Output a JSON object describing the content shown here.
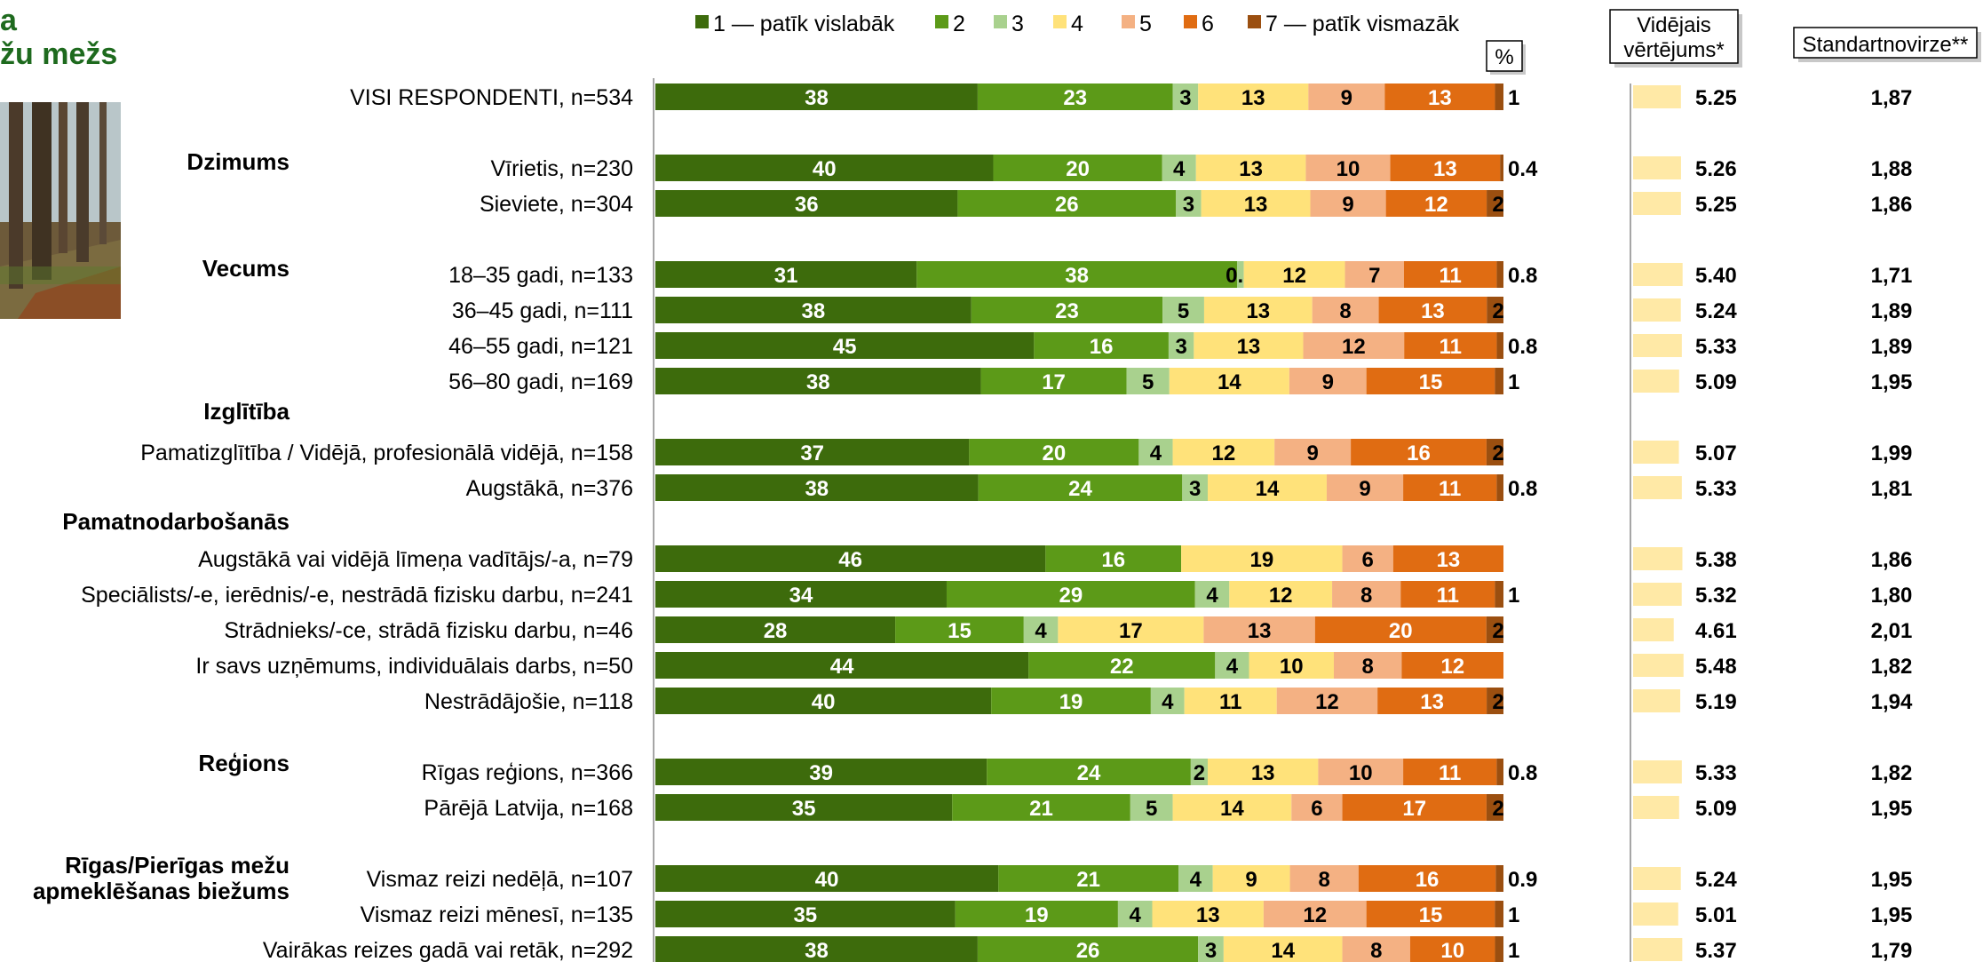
{
  "title_fragments": [
    "a",
    "žu mežs"
  ],
  "photo_icon": "forest-photo-icon",
  "percent_label": "%",
  "mean_header": [
    "Vidējais",
    "vērtējums*"
  ],
  "sd_header": "Standartnovirze**",
  "colors": [
    "#3d6b0c",
    "#5c9a18",
    "#a9d18e",
    "#ffe27a",
    "#f4b183",
    "#e06c12",
    "#9b4f10"
  ],
  "chart_data": {
    "type": "bar",
    "orientation": "horizontal",
    "stacked": true,
    "legend_position": "top",
    "xlim": [
      0,
      100
    ],
    "series": [
      {
        "name": "1 — patīk vislabāk"
      },
      {
        "name": "2"
      },
      {
        "name": "3"
      },
      {
        "name": "4"
      },
      {
        "name": "5"
      },
      {
        "name": "6"
      },
      {
        "name": "7 — patīk vismazāk"
      }
    ],
    "rows": [
      {
        "group": "",
        "label": "VISI RESPONDENTI, n=534",
        "values": [
          38,
          23,
          3,
          13,
          9,
          13,
          1
        ],
        "labels": [
          "38",
          "23",
          "3",
          "13",
          "9",
          "13",
          "1"
        ],
        "mean": "5.25",
        "sd": "1,87"
      },
      {
        "group": "Dzimums",
        "label": "Vīrietis, n=230",
        "values": [
          40,
          20,
          4,
          13,
          10,
          13,
          0.4
        ],
        "labels": [
          "40",
          "20",
          "4",
          "13",
          "10",
          "13",
          "0.4"
        ],
        "mean": "5.26",
        "sd": "1,88"
      },
      {
        "group": "",
        "label": "Sieviete, n=304",
        "values": [
          36,
          26,
          3,
          13,
          9,
          12,
          2
        ],
        "labels": [
          "36",
          "26",
          "3",
          "13",
          "9",
          "12",
          "2"
        ],
        "mean": "5.25",
        "sd": "1,86"
      },
      {
        "group": "Vecums",
        "label": "18–35 gadi, n=133",
        "values": [
          31,
          38,
          0.8,
          12,
          7,
          11,
          0.8
        ],
        "labels": [
          "31",
          "38",
          "0.8",
          "12",
          "7",
          "11",
          "0.8"
        ],
        "mean": "5.40",
        "sd": "1,71"
      },
      {
        "group": "",
        "label": "36–45 gadi, n=111",
        "values": [
          38,
          23,
          5,
          13,
          8,
          13,
          2
        ],
        "labels": [
          "38",
          "23",
          "5",
          "13",
          "8",
          "13",
          "2"
        ],
        "mean": "5.24",
        "sd": "1,89"
      },
      {
        "group": "",
        "label": "46–55 gadi, n=121",
        "values": [
          45,
          16,
          3,
          13,
          12,
          11,
          0.8
        ],
        "labels": [
          "45",
          "16",
          "3",
          "13",
          "12",
          "11",
          "0.8"
        ],
        "mean": "5.33",
        "sd": "1,89"
      },
      {
        "group": "",
        "label": "56–80 gadi, n=169",
        "values": [
          38,
          17,
          5,
          14,
          9,
          15,
          1
        ],
        "labels": [
          "38",
          "17",
          "5",
          "14",
          "9",
          "15",
          "1"
        ],
        "mean": "5.09",
        "sd": "1,95"
      },
      {
        "group": "Izglītība",
        "label": "Pamatizglītība / Vidējā, profesionālā vidējā, n=158",
        "values": [
          37,
          20,
          4,
          12,
          9,
          16,
          2
        ],
        "labels": [
          "37",
          "20",
          "4",
          "12",
          "9",
          "16",
          "2"
        ],
        "mean": "5.07",
        "sd": "1,99"
      },
      {
        "group": "",
        "label": "Augstākā, n=376",
        "values": [
          38,
          24,
          3,
          14,
          9,
          11,
          0.8
        ],
        "labels": [
          "38",
          "24",
          "3",
          "14",
          "9",
          "11",
          "0.8"
        ],
        "mean": "5.33",
        "sd": "1,81"
      },
      {
        "group": "Pamatnodarbošanās",
        "label": "Augstākā vai vidējā līmeņa vadītājs/-a, n=79",
        "values": [
          46,
          16,
          0,
          19,
          6,
          13,
          0
        ],
        "labels": [
          "46",
          "16",
          "",
          "19",
          "6",
          "13",
          ""
        ],
        "mean": "5.38",
        "sd": "1,86"
      },
      {
        "group": "",
        "label": "Speciālists/-e, ierēdnis/-e, nestrādā fizisku darbu, n=241",
        "values": [
          34,
          29,
          4,
          12,
          8,
          11,
          1
        ],
        "labels": [
          "34",
          "29",
          "4",
          "12",
          "8",
          "11",
          "1"
        ],
        "mean": "5.32",
        "sd": "1,80"
      },
      {
        "group": "",
        "label": "Strādnieks/-ce, strādā fizisku darbu, n=46",
        "values": [
          28,
          15,
          4,
          17,
          13,
          20,
          2
        ],
        "labels": [
          "28",
          "15",
          "4",
          "17",
          "13",
          "20",
          "2"
        ],
        "mean": "4.61",
        "sd": "2,01"
      },
      {
        "group": "",
        "label": "Ir savs uzņēmums, individuālais darbs, n=50",
        "values": [
          44,
          22,
          4,
          10,
          8,
          12,
          0
        ],
        "labels": [
          "44",
          "22",
          "4",
          "10",
          "8",
          "12",
          ""
        ],
        "mean": "5.48",
        "sd": "1,82"
      },
      {
        "group": "",
        "label": "Nestrādājošie, n=118",
        "values": [
          40,
          19,
          4,
          11,
          12,
          13,
          2
        ],
        "labels": [
          "40",
          "19",
          "4",
          "11",
          "12",
          "13",
          "2"
        ],
        "mean": "5.19",
        "sd": "1,94"
      },
      {
        "group": "Reģions",
        "label": "Rīgas reģions, n=366",
        "values": [
          39,
          24,
          2,
          13,
          10,
          11,
          0.8
        ],
        "labels": [
          "39",
          "24",
          "2",
          "13",
          "10",
          "11",
          "0.8"
        ],
        "mean": "5.33",
        "sd": "1,82"
      },
      {
        "group": "",
        "label": "Pārējā Latvija, n=168",
        "values": [
          35,
          21,
          5,
          14,
          6,
          17,
          2
        ],
        "labels": [
          "35",
          "21",
          "5",
          "14",
          "6",
          "17",
          "2"
        ],
        "mean": "5.09",
        "sd": "1,95"
      },
      {
        "group": "Rīgas/Pierīgas mežu apmeklēšanas biežums",
        "label": "Vismaz reizi nedēļā, n=107",
        "values": [
          40,
          21,
          4,
          9,
          8,
          16,
          0.9
        ],
        "labels": [
          "40",
          "21",
          "4",
          "9",
          "8",
          "16",
          "0.9"
        ],
        "mean": "5.24",
        "sd": "1,95"
      },
      {
        "group": "",
        "label": "Vismaz reizi mēnesī, n=135",
        "values": [
          35,
          19,
          4,
          13,
          12,
          15,
          1
        ],
        "labels": [
          "35",
          "19",
          "4",
          "13",
          "12",
          "15",
          "1"
        ],
        "mean": "5.01",
        "sd": "1,95"
      },
      {
        "group": "",
        "label": "Vairākas reizes gadā vai retāk, n=292",
        "values": [
          38,
          26,
          3,
          14,
          8,
          10,
          1
        ],
        "labels": [
          "38",
          "26",
          "3",
          "14",
          "8",
          "10",
          "1"
        ],
        "mean": "5.37",
        "sd": "1,79"
      }
    ]
  }
}
